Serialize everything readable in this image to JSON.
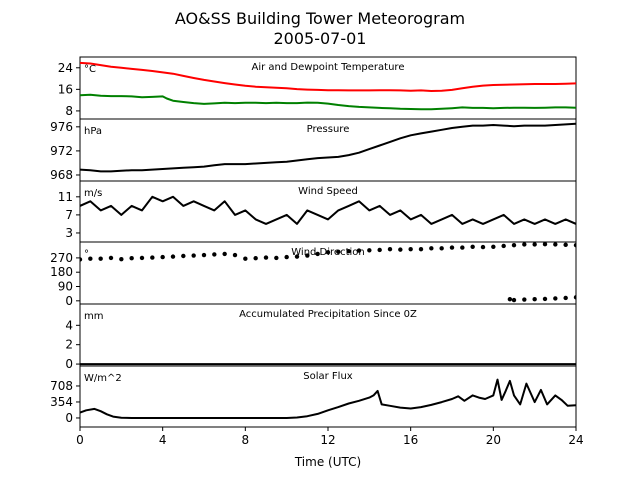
{
  "figure": {
    "title": "AO&SS Building Tower Meteorogram",
    "subtitle": "2005-07-01",
    "xlabel": "Time (UTC)"
  },
  "chart_data": [
    {
      "type": "line",
      "title": "Air and Dewpoint Temperature",
      "unit": "°C",
      "xlim": [
        0,
        24
      ],
      "ylim": [
        5,
        28
      ],
      "yticks": [
        8,
        16,
        24
      ],
      "series": [
        {
          "color": "#ff0000",
          "x": [
            0,
            0.5,
            1,
            1.5,
            2,
            2.5,
            3,
            3.5,
            4,
            4.5,
            5,
            5.5,
            6,
            6.5,
            7,
            7.5,
            8,
            8.5,
            9,
            9.5,
            10,
            10.5,
            11,
            11.5,
            12,
            12.5,
            13,
            13.5,
            14,
            14.5,
            15,
            15.5,
            16,
            16.5,
            17,
            17.5,
            18,
            18.5,
            19,
            19.5,
            20,
            20.5,
            21,
            21.5,
            22,
            22.5,
            23,
            23.5,
            24
          ],
          "y": [
            25.8,
            25.6,
            25.0,
            24.4,
            24.0,
            23.6,
            23.2,
            22.8,
            22.3,
            21.8,
            21.0,
            20.2,
            19.5,
            18.9,
            18.3,
            17.8,
            17.3,
            17.0,
            16.8,
            16.6,
            16.4,
            16.1,
            15.9,
            15.8,
            15.7,
            15.7,
            15.6,
            15.6,
            15.6,
            15.7,
            15.7,
            15.6,
            15.5,
            15.6,
            15.4,
            15.5,
            15.8,
            16.4,
            17.0,
            17.4,
            17.6,
            17.7,
            17.8,
            17.9,
            18.0,
            18.0,
            18.0,
            18.1,
            18.2
          ]
        },
        {
          "color": "#008000",
          "x": [
            0,
            0.5,
            1,
            1.5,
            2,
            2.5,
            3,
            3.5,
            4,
            4.2,
            4.5,
            5,
            5.5,
            6,
            6.5,
            7,
            7.5,
            8,
            8.5,
            9,
            9.5,
            10,
            10.5,
            11,
            11.5,
            12,
            12.5,
            13,
            13.5,
            14,
            14.5,
            15,
            15.5,
            16,
            16.5,
            17,
            17.5,
            18,
            18.5,
            19,
            19.5,
            20,
            20.5,
            21,
            21.5,
            22,
            22.5,
            23,
            23.5,
            24
          ],
          "y": [
            13.8,
            14.0,
            13.6,
            13.5,
            13.5,
            13.4,
            13.1,
            13.2,
            13.4,
            12.6,
            11.8,
            11.3,
            10.9,
            10.6,
            10.8,
            11.0,
            10.9,
            11.0,
            11.0,
            10.9,
            11.0,
            10.9,
            10.9,
            11.1,
            11.0,
            10.7,
            10.2,
            9.8,
            9.5,
            9.3,
            9.1,
            9.0,
            8.8,
            8.7,
            8.6,
            8.6,
            8.8,
            9.0,
            9.3,
            9.1,
            9.1,
            9.0,
            9.1,
            9.2,
            9.2,
            9.1,
            9.2,
            9.3,
            9.3,
            9.2
          ]
        }
      ]
    },
    {
      "type": "line",
      "title": "Pressure",
      "unit": "hPa",
      "xlim": [
        0,
        24
      ],
      "ylim": [
        967,
        977.3
      ],
      "yticks": [
        968,
        972,
        976
      ],
      "series": [
        {
          "color": "#000000",
          "x": [
            0,
            0.5,
            1,
            1.5,
            2,
            2.5,
            3,
            3.5,
            4,
            4.5,
            5,
            5.5,
            6,
            6.5,
            7,
            7.5,
            8,
            8.5,
            9,
            9.5,
            10,
            10.5,
            11,
            11.5,
            12,
            12.5,
            13,
            13.5,
            14,
            14.5,
            15,
            15.5,
            16,
            16.5,
            17,
            17.5,
            18,
            18.5,
            19,
            19.5,
            20,
            20.5,
            21,
            21.5,
            22,
            22.5,
            23,
            23.5,
            24
          ],
          "y": [
            968.9,
            968.8,
            968.6,
            968.6,
            968.7,
            968.8,
            968.8,
            968.9,
            969.0,
            969.1,
            969.2,
            969.3,
            969.4,
            969.6,
            969.8,
            969.8,
            969.8,
            969.9,
            970.0,
            970.1,
            970.2,
            970.4,
            970.6,
            970.8,
            970.9,
            971.0,
            971.3,
            971.7,
            972.3,
            972.9,
            973.5,
            974.1,
            974.6,
            974.9,
            975.2,
            975.5,
            975.8,
            976.0,
            976.2,
            976.2,
            976.3,
            976.2,
            976.1,
            976.2,
            976.2,
            976.2,
            976.3,
            976.4,
            976.5
          ]
        }
      ]
    },
    {
      "type": "line",
      "title": "Wind Speed",
      "unit": "m/s",
      "xlim": [
        0,
        24
      ],
      "ylim": [
        1,
        14.5
      ],
      "yticks": [
        3,
        7,
        11
      ],
      "series": [
        {
          "color": "#000000",
          "x": [
            0,
            0.5,
            1,
            1.5,
            2,
            2.5,
            3,
            3.5,
            4,
            4.5,
            5,
            5.5,
            6,
            6.5,
            7,
            7.5,
            8,
            8.5,
            9,
            9.5,
            10,
            10.5,
            11,
            11.5,
            12,
            12.5,
            13,
            13.5,
            14,
            14.5,
            15,
            15.5,
            16,
            16.5,
            17,
            17.5,
            18,
            18.5,
            19,
            19.5,
            20,
            20.5,
            21,
            21.5,
            22,
            22.5,
            23,
            23.5,
            24
          ],
          "y": [
            9,
            10,
            8,
            9,
            7,
            9,
            8,
            11,
            10,
            11,
            9,
            10,
            9,
            8,
            10,
            7,
            8,
            6,
            5,
            6,
            7,
            5,
            8,
            7,
            6,
            8,
            9,
            10,
            8,
            9,
            7,
            8,
            6,
            7,
            5,
            6,
            7,
            5,
            6,
            5,
            6,
            7,
            5,
            6,
            5,
            6,
            5,
            6,
            5
          ]
        }
      ]
    },
    {
      "type": "scatter",
      "title": "Wind Direction",
      "unit": "°",
      "xlim": [
        0,
        24
      ],
      "ylim": [
        -20,
        370
      ],
      "yticks": [
        0,
        90,
        180,
        270
      ],
      "series": [
        {
          "color": "#000000",
          "x": [
            0,
            0.5,
            1,
            1.5,
            2,
            2.5,
            3,
            3.5,
            4,
            4.5,
            5,
            5.5,
            6,
            6.5,
            7,
            7.5,
            8,
            8.5,
            9,
            9.5,
            10,
            10.5,
            11,
            11.5,
            12,
            12.5,
            13,
            13.5,
            14,
            14.5,
            15,
            15.5,
            16,
            16.5,
            17,
            17.5,
            18,
            18.5,
            19,
            19.5,
            20,
            20.5,
            21,
            21.5,
            22,
            22.5,
            23,
            23.5,
            24,
            20.8,
            21,
            21.5,
            22,
            22.5,
            23,
            23.5,
            24
          ],
          "y": [
            260,
            265,
            265,
            270,
            262,
            268,
            270,
            272,
            275,
            278,
            282,
            285,
            288,
            292,
            295,
            288,
            265,
            268,
            272,
            270,
            275,
            278,
            285,
            295,
            305,
            308,
            312,
            316,
            318,
            320,
            325,
            322,
            325,
            325,
            330,
            330,
            335,
            335,
            340,
            338,
            340,
            345,
            350,
            355,
            355,
            356,
            355,
            352,
            350,
            10,
            5,
            8,
            10,
            12,
            15,
            18,
            22
          ]
        }
      ]
    },
    {
      "type": "line",
      "title": "Accumulated Precipitation Since 0Z",
      "unit": "mm",
      "xlim": [
        0,
        24
      ],
      "ylim": [
        -0.2,
        6.2
      ],
      "yticks": [
        0,
        2,
        4
      ],
      "series": [
        {
          "color": "#000000",
          "x": [
            0,
            24
          ],
          "y": [
            0,
            0
          ]
        }
      ]
    },
    {
      "type": "line",
      "title": "Solar Flux",
      "unit": "W/m^2",
      "xlim": [
        0,
        24
      ],
      "ylim": [
        -200,
        1150
      ],
      "yticks": [
        0,
        354,
        708
      ],
      "series": [
        {
          "color": "#000000",
          "x": [
            0,
            0.3,
            0.7,
            1,
            1.3,
            1.6,
            2,
            2.5,
            3,
            4,
            5,
            6,
            7,
            8,
            9,
            10,
            10.5,
            11,
            11.5,
            12,
            12.5,
            13,
            13.5,
            14,
            14.2,
            14.4,
            14.6,
            15,
            15.5,
            16,
            16.5,
            17,
            17.5,
            18,
            18.3,
            18.6,
            19,
            19.3,
            19.6,
            20,
            20.2,
            20.4,
            20.6,
            20.8,
            21,
            21.3,
            21.6,
            22,
            22.3,
            22.6,
            23,
            23.3,
            23.6,
            24
          ],
          "y": [
            120,
            170,
            200,
            150,
            80,
            30,
            5,
            0,
            0,
            0,
            0,
            0,
            0,
            0,
            0,
            0,
            10,
            40,
            90,
            170,
            240,
            320,
            380,
            450,
            500,
            600,
            300,
            270,
            230,
            210,
            240,
            290,
            350,
            420,
            480,
            380,
            500,
            450,
            420,
            500,
            850,
            400,
            600,
            820,
            500,
            300,
            760,
            350,
            620,
            300,
            500,
            400,
            270,
            280
          ]
        }
      ]
    }
  ]
}
